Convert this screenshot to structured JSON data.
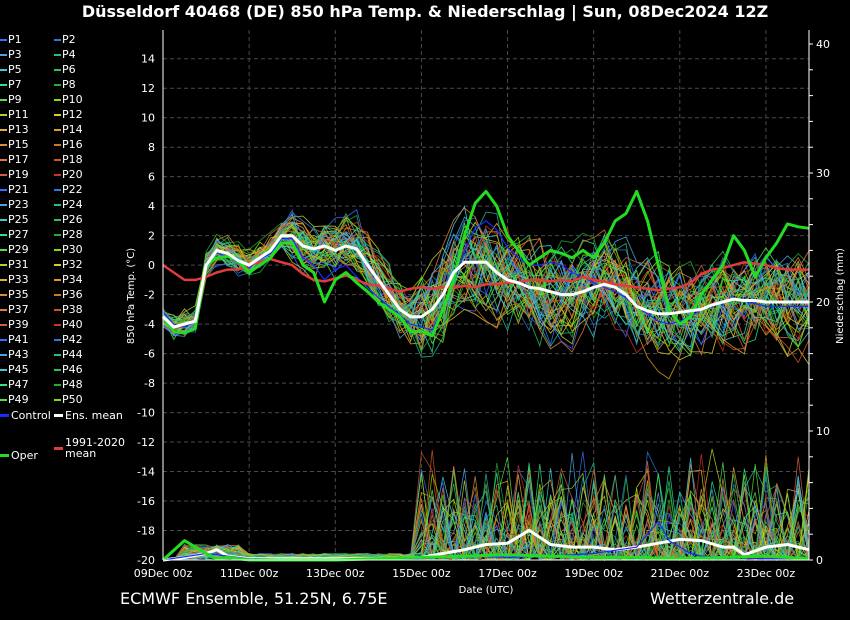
{
  "header": {
    "title": "Düsseldorf 40468 (DE)  850 hPa Temp. & Niederschlag | Sun, 08Dec2024 12Z"
  },
  "footer": {
    "model_location": "ECMWF Ensemble, 51.25N, 6.75E",
    "site": "Wetterzentrale.de"
  },
  "legend": {
    "members": [
      "P1",
      "P2",
      "P3",
      "P4",
      "P5",
      "P6",
      "P7",
      "P8",
      "P9",
      "P10",
      "P11",
      "P12",
      "P13",
      "P14",
      "P15",
      "P16",
      "P17",
      "P18",
      "P19",
      "P20",
      "P21",
      "P22",
      "P23",
      "P24",
      "P25",
      "P26",
      "P27",
      "P28",
      "P29",
      "P30",
      "P31",
      "P32",
      "P33",
      "P34",
      "P35",
      "P36",
      "P37",
      "P38",
      "P39",
      "P40",
      "P41",
      "P42",
      "P43",
      "P44",
      "P45",
      "P46",
      "P47",
      "P48",
      "P49",
      "P50"
    ],
    "member_colors": [
      "#3a6cff",
      "#2a7bd6",
      "#4aa3e8",
      "#1fbf8f",
      "#3fc9d9",
      "#2fbf5a",
      "#2ee08a",
      "#22aa33",
      "#55dd44",
      "#88dd00",
      "#bbcc33",
      "#ddcc22",
      "#e0b030",
      "#d8a020",
      "#d98a3a",
      "#cc7a22",
      "#e07a40",
      "#cc5522",
      "#d06040",
      "#cc3322",
      "#3a6cff",
      "#2a7bd6",
      "#4aa3e8",
      "#1fbf8f",
      "#3fc9d9",
      "#2fbf5a",
      "#2ee08a",
      "#22aa33",
      "#55dd44",
      "#88dd00",
      "#bbcc33",
      "#ddcc22",
      "#e0b030",
      "#d8a020",
      "#d98a3a",
      "#cc7a22",
      "#e07a40",
      "#cc5522",
      "#d06040",
      "#cc3322",
      "#3a6cff",
      "#2a7bd6",
      "#4aa3e8",
      "#1fbf8f",
      "#3fc9d9",
      "#2fbf5a",
      "#2ee08a",
      "#22aa33",
      "#55dd44",
      "#88dd00"
    ],
    "control": "Control",
    "ens_mean": "Ens. mean",
    "clim_line1": "1991-2020",
    "clim_line2": "mean",
    "oper": "Oper"
  },
  "colors": {
    "control": "#1a2bff",
    "ens_mean": "#ffffff",
    "clim": "#e03c3c",
    "oper": "#22dd22",
    "grid": "#4a4a4a",
    "background": "#000000"
  },
  "chart_data": {
    "type": "line",
    "xlabel": "Date (UTC)",
    "ylabel_left": "850 hPa Temp. (°C)",
    "ylabel_right": "Niederschlag (mm)",
    "x_range": [
      0,
      15
    ],
    "ylim_left": [
      -20,
      15
    ],
    "ylim_right": [
      0,
      40
    ],
    "x_tick_labels": [
      "09Dec 00z",
      "11Dec 00z",
      "13Dec 00z",
      "15Dec 00z",
      "17Dec 00z",
      "19Dec 00z",
      "21Dec 00z",
      "23Dec 00z"
    ],
    "x_tick_days": [
      0,
      2,
      4,
      6,
      8,
      10,
      12,
      14
    ],
    "y_left_ticks": [
      14,
      12,
      10,
      8,
      6,
      4,
      2,
      0,
      -2,
      -4,
      -6,
      -8,
      -10,
      -12,
      -14,
      -16,
      -18,
      -20
    ],
    "y_right_ticks": [
      40,
      30,
      20,
      10,
      0
    ],
    "grid": true,
    "series": [
      {
        "name": "Ens. mean",
        "x": [
          0,
          0.25,
          0.5,
          0.75,
          1,
          1.25,
          1.5,
          1.75,
          2,
          2.25,
          2.5,
          2.75,
          3,
          3.25,
          3.5,
          3.75,
          4,
          4.25,
          4.5,
          4.75,
          5,
          5.25,
          5.5,
          5.75,
          6,
          6.25,
          6.5,
          6.75,
          7,
          7.25,
          7.5,
          7.75,
          8,
          8.25,
          8.5,
          8.75,
          9,
          9.25,
          9.5,
          9.75,
          10,
          10.25,
          10.5,
          10.75,
          11,
          11.25,
          11.5,
          11.75,
          12,
          12.25,
          12.5,
          12.75,
          13,
          13.25,
          13.5,
          13.75,
          14,
          14.25,
          14.5,
          14.75,
          15
        ],
        "values": [
          -3.5,
          -4.2,
          -4,
          -3.8,
          0,
          1,
          0.8,
          0.3,
          0,
          0.5,
          1,
          2,
          2,
          1.3,
          1.1,
          1.3,
          1,
          1.3,
          1.1,
          0,
          -1,
          -2,
          -3,
          -3.5,
          -3.5,
          -3,
          -2,
          -0.5,
          0.2,
          0.2,
          0.2,
          -0.5,
          -1,
          -1.2,
          -1.5,
          -1.6,
          -1.8,
          -2,
          -2,
          -1.8,
          -1.5,
          -1.3,
          -1.5,
          -2,
          -2.8,
          -3.1,
          -3.3,
          -3.3,
          -3.2,
          -3.1,
          -3,
          -2.7,
          -2.5,
          -2.3,
          -2.4,
          -2.4,
          -2.5,
          -2.5,
          -2.5,
          -2.5,
          -2.5
        ]
      },
      {
        "name": "1991-2020 mean",
        "x": [
          0,
          0.25,
          0.5,
          0.75,
          1,
          1.25,
          1.5,
          1.75,
          2,
          2.25,
          2.5,
          2.75,
          3,
          3.25,
          3.5,
          3.75,
          4,
          4.25,
          4.5,
          4.75,
          5,
          5.25,
          5.5,
          5.75,
          6,
          6.25,
          6.5,
          6.75,
          7,
          7.25,
          7.5,
          7.75,
          8,
          8.25,
          8.5,
          8.75,
          9,
          9.25,
          9.5,
          9.75,
          10,
          10.25,
          10.5,
          10.75,
          11,
          11.25,
          11.5,
          11.75,
          12,
          12.25,
          12.5,
          12.75,
          13,
          13.25,
          13.5,
          13.75,
          14,
          14.25,
          14.5,
          14.75,
          15
        ],
        "values": [
          0,
          -0.5,
          -1,
          -1,
          -0.8,
          -0.5,
          -0.3,
          -0.3,
          0,
          0.2,
          0.4,
          0.2,
          0,
          -0.6,
          -1,
          -1.1,
          -0.9,
          -0.7,
          -1,
          -1.3,
          -1.4,
          -1.6,
          -1.8,
          -1.6,
          -1.5,
          -1.6,
          -1.5,
          -1.5,
          -1.4,
          -1.5,
          -1.3,
          -1.3,
          -1.2,
          -1.2,
          -1,
          -1,
          -1.1,
          -1,
          -1.1,
          -0.8,
          -1,
          -1.1,
          -1.3,
          -1.4,
          -1.5,
          -1.6,
          -1.7,
          -1.6,
          -1.5,
          -1.2,
          -0.6,
          -0.3,
          -0.2,
          0,
          0.2,
          0.1,
          0,
          -0.2,
          -0.3,
          -0.3,
          -0.3
        ]
      },
      {
        "name": "Oper",
        "x": [
          0,
          0.25,
          0.5,
          0.75,
          1,
          1.25,
          1.5,
          1.75,
          2,
          2.25,
          2.5,
          2.75,
          3,
          3.25,
          3.5,
          3.75,
          4,
          4.25,
          4.5,
          4.75,
          5,
          5.25,
          5.5,
          5.75,
          6,
          6.25,
          6.5,
          6.75,
          7,
          7.25,
          7.5,
          7.75,
          8,
          8.25,
          8.5,
          8.75,
          9,
          9.25,
          9.5,
          9.75,
          10,
          10.25,
          10.5,
          10.75,
          11,
          11.25,
          11.5,
          11.75,
          12,
          12.25,
          12.5,
          12.75,
          13,
          13.25,
          13.5,
          13.75,
          14,
          14.25,
          14.5,
          14.75,
          15
        ],
        "values": [
          -3.5,
          -4.5,
          -4.6,
          -4.3,
          0,
          0.5,
          0.6,
          0.3,
          -0.5,
          0,
          0.5,
          1.5,
          1.5,
          0,
          -0.5,
          -2.5,
          -1,
          -0.5,
          -1.2,
          -1.8,
          -2.5,
          -3,
          -3.5,
          -4.5,
          -4.5,
          -4.8,
          -3,
          -1,
          2,
          4.2,
          5,
          4,
          2,
          1,
          0,
          0.5,
          1,
          0.8,
          0.5,
          1,
          0.5,
          1.5,
          3,
          3.5,
          5,
          3,
          0,
          -3,
          -4,
          -3.5,
          -2,
          -1,
          0,
          2,
          1,
          -0.8,
          0.5,
          1.5,
          2.8,
          2.6,
          2.5
        ]
      },
      {
        "name": "Control",
        "x": [
          0,
          0.25,
          0.5,
          0.75,
          1,
          1.25,
          1.5,
          1.75,
          2,
          2.25,
          2.5,
          2.75,
          3,
          3.25,
          3.5,
          3.75,
          4,
          4.25,
          4.5,
          4.75,
          5,
          5.25,
          5.5,
          5.75,
          6,
          6.25,
          6.5,
          6.75,
          7,
          7.25,
          7.5,
          7.75,
          8,
          8.25,
          8.5,
          8.75,
          9,
          9.25,
          9.5,
          9.75,
          10,
          10.25,
          10.5,
          10.75,
          11,
          11.25,
          11.5,
          11.75,
          12,
          12.25,
          12.5,
          12.75,
          13,
          13.25,
          13.5,
          13.75,
          14,
          14.25,
          14.5,
          14.75,
          15
        ],
        "values": [
          -3.2,
          -4,
          -4.2,
          -3.8,
          0.2,
          0.8,
          0.6,
          0.2,
          -0.2,
          0.4,
          0.8,
          1.8,
          1.8,
          0.5,
          0,
          -1,
          -0.3,
          0,
          -0.8,
          -1.5,
          -2.2,
          -2.8,
          -3.4,
          -4,
          -4.2,
          -4.4,
          -3,
          -1.2,
          1,
          2.5,
          3,
          2.4,
          1.2,
          0.5,
          0,
          0,
          0.2,
          0,
          -0.5,
          -0.8,
          -1.2,
          -1.5,
          -1.8,
          -2.2,
          -2.8,
          -3.3,
          -3.8,
          -4,
          -3.8,
          -3.5,
          -3,
          -2.8,
          -2.5,
          -2.2,
          -2.4,
          -2.6,
          -2.8,
          -2.8,
          -2.8,
          -2.8,
          -2.8
        ]
      }
    ],
    "precip_series": [
      {
        "name": "Ens. mean",
        "x": [
          0,
          0.5,
          1,
          1.25,
          1.5,
          2,
          3,
          4,
          5,
          6,
          6.5,
          7,
          7.5,
          8,
          8.25,
          8.5,
          9,
          9.5,
          10,
          10.5,
          11,
          11.5,
          12,
          12.5,
          13,
          13.25,
          13.5,
          14,
          14.5,
          15
        ],
        "values": [
          0,
          0.2,
          0.5,
          0.8,
          0.3,
          0.1,
          0.1,
          0.1,
          0.1,
          0.2,
          0.5,
          0.8,
          1.2,
          1.3,
          1.8,
          2.3,
          1.2,
          1,
          1,
          0.8,
          1,
          1.3,
          1.6,
          1.5,
          1,
          1,
          0.4,
          1,
          1.2,
          0.8
        ]
      },
      {
        "name": "Control",
        "x": [
          0,
          1,
          2,
          4,
          6,
          7,
          8,
          9,
          10,
          11,
          11.5,
          11.75,
          12,
          12.25,
          12.5,
          13,
          14,
          15
        ],
        "values": [
          0,
          0.5,
          0.1,
          0,
          0.1,
          0.3,
          0.2,
          0.3,
          0.5,
          1,
          3,
          1.5,
          1,
          0.5,
          0.3,
          0.2,
          0.1,
          0.1
        ]
      },
      {
        "name": "Oper",
        "x": [
          0,
          0.5,
          1,
          1.25,
          1.5,
          2,
          4,
          6,
          7,
          8,
          9,
          10,
          11,
          12,
          13,
          14,
          15
        ],
        "values": [
          0,
          1.5,
          0.5,
          0.1,
          0.2,
          0,
          0,
          0.2,
          0.3,
          0.4,
          0.3,
          0.2,
          0.2,
          0.1,
          0.2,
          0.3,
          0.1
        ]
      }
    ]
  }
}
